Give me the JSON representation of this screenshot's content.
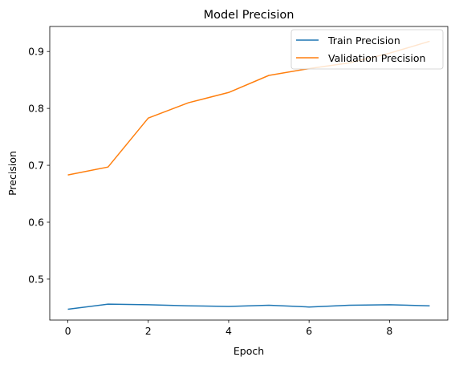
{
  "chart_data": {
    "type": "line",
    "title": "Model Precision",
    "xlabel": "Epoch",
    "ylabel": "Precision",
    "x": [
      0,
      1,
      2,
      3,
      4,
      5,
      6,
      7,
      8,
      9
    ],
    "xlim": [
      -0.45,
      9.45
    ],
    "ylim": [
      0.428,
      0.944
    ],
    "xticks": [
      0,
      2,
      4,
      6,
      8
    ],
    "yticks": [
      0.5,
      0.6,
      0.7,
      0.8,
      0.9
    ],
    "xtick_labels": [
      "0",
      "2",
      "4",
      "6",
      "8"
    ],
    "ytick_labels": [
      "0.5",
      "0.6",
      "0.7",
      "0.8",
      "0.9"
    ],
    "grid": false,
    "legend": "upper right",
    "series": [
      {
        "name": "Train Precision",
        "color": "#1f77b4",
        "values": [
          0.447,
          0.456,
          0.455,
          0.453,
          0.452,
          0.454,
          0.451,
          0.454,
          0.455,
          0.453
        ]
      },
      {
        "name": "Validation Precision",
        "color": "#ff7f0e",
        "values": [
          0.683,
          0.697,
          0.783,
          0.81,
          0.828,
          0.858,
          0.87,
          0.88,
          0.897,
          0.918
        ]
      }
    ]
  }
}
